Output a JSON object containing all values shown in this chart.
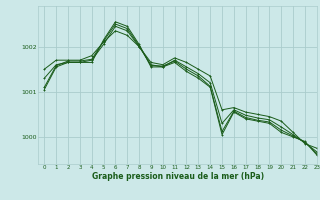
{
  "bg_color": "#cce8e8",
  "grid_color": "#aacccc",
  "line_color": "#1a5c1a",
  "xlabel": "Graphe pression niveau de la mer (hPa)",
  "xlim": [
    -0.5,
    23
  ],
  "ylim": [
    999.4,
    1002.9
  ],
  "yticks": [
    1000,
    1001,
    1002
  ],
  "xticks": [
    0,
    1,
    2,
    3,
    4,
    5,
    6,
    7,
    8,
    9,
    10,
    11,
    12,
    13,
    14,
    15,
    16,
    17,
    18,
    19,
    20,
    21,
    22,
    23
  ],
  "series": [
    [
      1001.05,
      1001.55,
      1001.65,
      1001.65,
      1001.65,
      1002.15,
      1002.55,
      1002.45,
      1002.05,
      1001.55,
      1001.55,
      1001.65,
      1001.45,
      1001.3,
      1001.1,
      1000.05,
      1000.55,
      1000.4,
      1000.35,
      1000.3,
      1000.1,
      1000.0,
      999.9,
      999.6
    ],
    [
      1001.5,
      1001.7,
      1001.7,
      1001.7,
      1001.8,
      1002.1,
      1002.35,
      1002.25,
      1002.0,
      1001.65,
      1001.6,
      1001.75,
      1001.65,
      1001.5,
      1001.35,
      1000.6,
      1000.65,
      1000.55,
      1000.5,
      1000.45,
      1000.35,
      1000.1,
      999.85,
      999.75
    ],
    [
      1001.3,
      1001.6,
      1001.65,
      1001.65,
      1001.7,
      1002.05,
      1002.45,
      1002.35,
      1002.0,
      1001.6,
      1001.55,
      1001.7,
      1001.55,
      1001.4,
      1001.2,
      1000.3,
      1000.6,
      1000.48,
      1000.42,
      1000.38,
      1000.22,
      1000.05,
      999.87,
      999.67
    ],
    [
      1001.1,
      1001.58,
      1001.68,
      1001.68,
      1001.72,
      1002.12,
      1002.5,
      1002.4,
      1002.02,
      1001.58,
      1001.57,
      1001.68,
      1001.5,
      1001.35,
      1001.12,
      1000.12,
      1000.57,
      1000.43,
      1000.37,
      1000.33,
      1000.15,
      1000.02,
      999.88,
      999.63
    ]
  ]
}
